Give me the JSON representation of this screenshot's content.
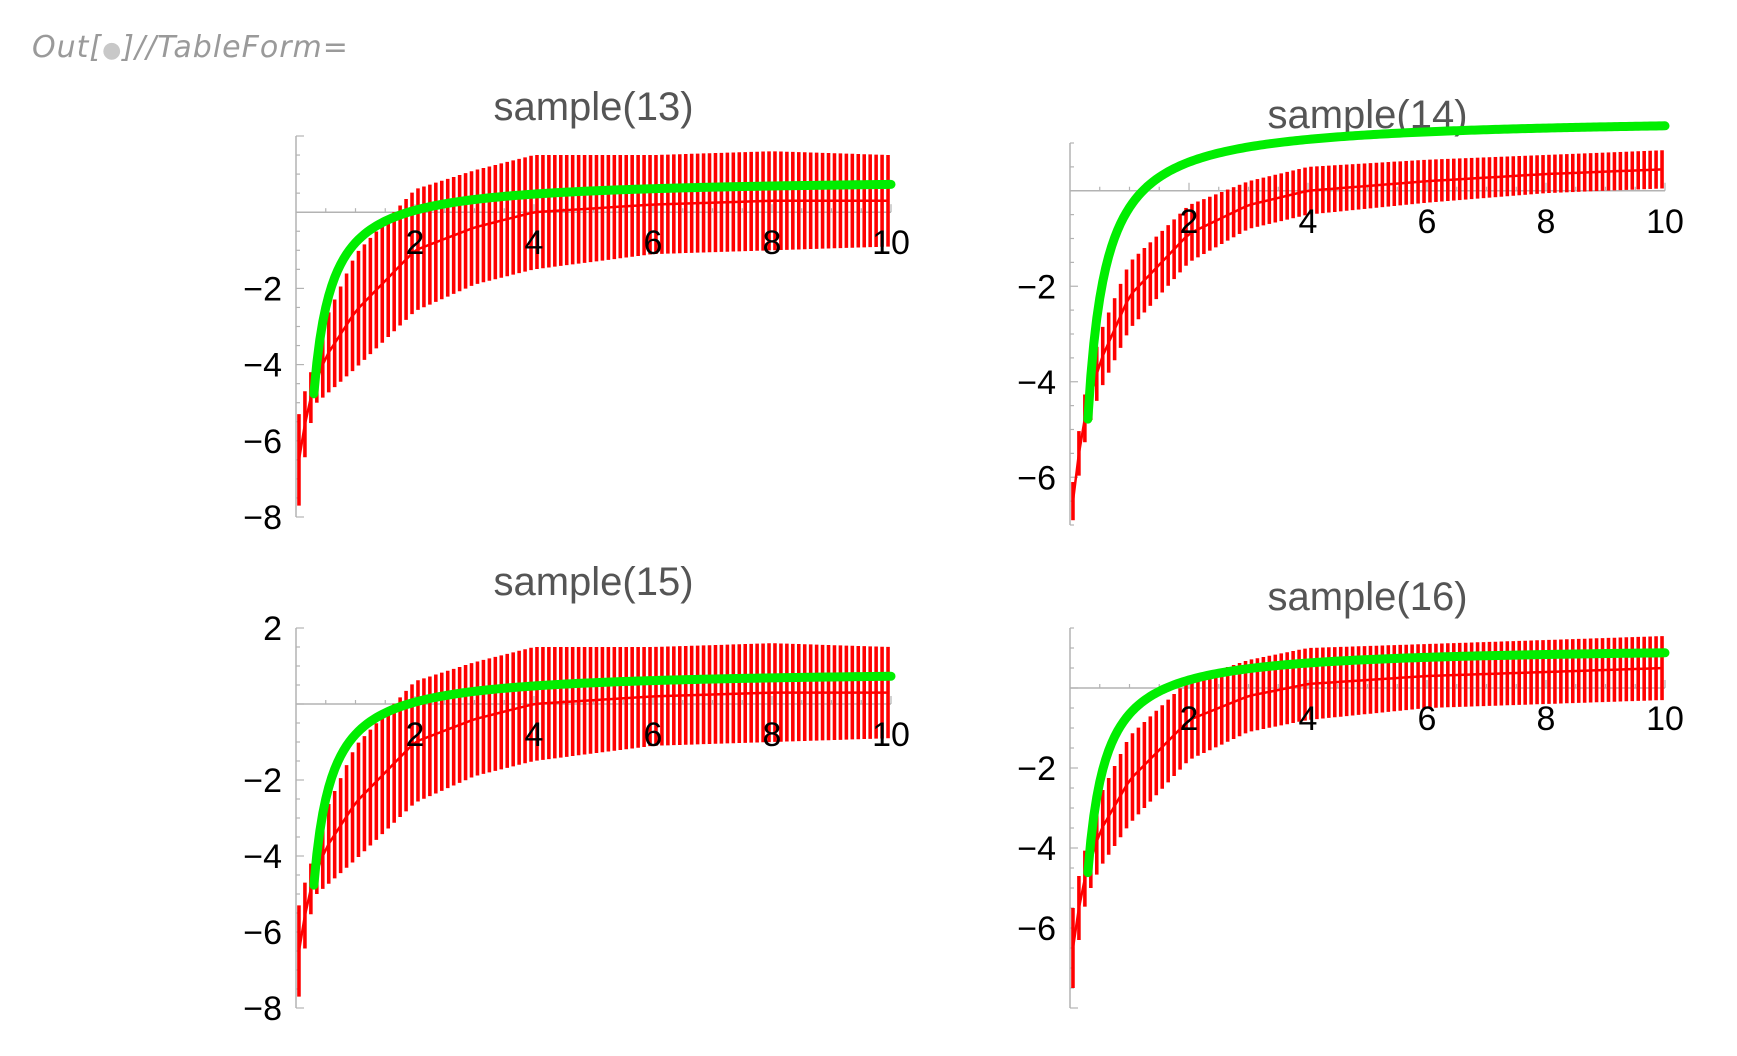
{
  "cell": {
    "prefix": "Out[",
    "suffix": "]//TableForm="
  },
  "colors": {
    "error_bar": "#ff0000",
    "fit_curve": "#00ee00",
    "axis": "#b3b3b3"
  },
  "chart_data": [
    {
      "type": "scatter",
      "title": "sample(13)",
      "xlabel": "",
      "ylabel": "",
      "xlim": [
        0,
        10
      ],
      "ylim": [
        -8,
        2
      ],
      "x_ticks": [
        2,
        4,
        6,
        8,
        10
      ],
      "y_ticks": [
        -2,
        -4,
        -6,
        -8
      ],
      "series": [
        {
          "kind": "errorbars",
          "x_start": 0.05,
          "x_end": 10.0,
          "x_step": 0.1,
          "points": [
            [
              0.05,
              -6.5,
              1.2
            ],
            [
              0.2,
              -5.1,
              0.7
            ],
            [
              0.35,
              -4.4,
              0.6
            ],
            [
              0.5,
              -3.8,
              1.0
            ],
            [
              1,
              -2.6,
              1.5
            ],
            [
              2,
              -1.0,
              1.6
            ],
            [
              3,
              -0.4,
              1.5
            ],
            [
              4,
              0.0,
              1.5
            ],
            [
              6,
              0.2,
              1.3
            ],
            [
              8,
              0.3,
              1.3
            ],
            [
              10,
              0.3,
              1.2
            ]
          ]
        },
        {
          "kind": "curve",
          "a": 0.9,
          "b": 1.7,
          "x_start": 0.3,
          "x_end": 10
        }
      ]
    },
    {
      "type": "scatter",
      "title": "sample(14)",
      "xlabel": "",
      "ylabel": "",
      "xlim": [
        0,
        10
      ],
      "ylim": [
        -7,
        1
      ],
      "x_ticks": [
        2,
        4,
        6,
        8,
        10
      ],
      "y_ticks": [
        -2,
        -4,
        -6
      ],
      "series": [
        {
          "kind": "errorbars",
          "x_start": 0.05,
          "x_end": 10.0,
          "x_step": 0.1,
          "points": [
            [
              0.05,
              -6.5,
              0.4
            ],
            [
              0.2,
              -5.0,
              0.5
            ],
            [
              0.35,
              -4.3,
              0.5
            ],
            [
              0.5,
              -3.6,
              0.6
            ],
            [
              1,
              -2.2,
              0.7
            ],
            [
              2,
              -0.9,
              0.6
            ],
            [
              3,
              -0.3,
              0.5
            ],
            [
              4,
              0.0,
              0.5
            ],
            [
              6,
              0.2,
              0.45
            ],
            [
              8,
              0.35,
              0.4
            ],
            [
              10,
              0.45,
              0.4
            ]
          ]
        },
        {
          "kind": "curve",
          "a": 1.55,
          "b": 1.9,
          "x_start": 0.3,
          "x_end": 10
        }
      ]
    },
    {
      "type": "scatter",
      "title": "sample(15)",
      "xlabel": "",
      "ylabel": "",
      "xlim": [
        0,
        10
      ],
      "ylim": [
        -8,
        2
      ],
      "x_ticks": [
        2,
        4,
        6,
        8,
        10
      ],
      "y_ticks": [
        2,
        -2,
        -4,
        -6,
        -8
      ],
      "series": [
        {
          "kind": "errorbars",
          "x_start": 0.05,
          "x_end": 10.0,
          "x_step": 0.1,
          "points": [
            [
              0.05,
              -6.5,
              1.2
            ],
            [
              0.2,
              -5.1,
              0.7
            ],
            [
              0.35,
              -4.4,
              0.6
            ],
            [
              0.5,
              -3.8,
              1.0
            ],
            [
              1,
              -2.6,
              1.5
            ],
            [
              2,
              -1.0,
              1.6
            ],
            [
              3,
              -0.4,
              1.5
            ],
            [
              4,
              0.0,
              1.5
            ],
            [
              6,
              0.2,
              1.3
            ],
            [
              8,
              0.3,
              1.3
            ],
            [
              10,
              0.3,
              1.2
            ]
          ]
        },
        {
          "kind": "curve",
          "a": 0.9,
          "b": 1.7,
          "x_start": 0.3,
          "x_end": 10
        }
      ]
    },
    {
      "type": "scatter",
      "title": "sample(16)",
      "xlabel": "",
      "ylabel": "",
      "xlim": [
        0,
        10
      ],
      "ylim": [
        -8,
        1.5
      ],
      "x_ticks": [
        2,
        4,
        6,
        8,
        10
      ],
      "y_ticks": [
        -2,
        -4,
        -6
      ],
      "series": [
        {
          "kind": "errorbars",
          "x_start": 0.05,
          "x_end": 10.0,
          "x_step": 0.1,
          "points": [
            [
              0.05,
              -6.5,
              1.0
            ],
            [
              0.2,
              -5.0,
              0.7
            ],
            [
              0.35,
              -4.3,
              0.7
            ],
            [
              0.5,
              -3.6,
              0.9
            ],
            [
              1,
              -2.3,
              1.1
            ],
            [
              2,
              -0.8,
              1.0
            ],
            [
              3,
              -0.2,
              0.9
            ],
            [
              4,
              0.1,
              0.9
            ],
            [
              6,
              0.3,
              0.8
            ],
            [
              8,
              0.4,
              0.8
            ],
            [
              10,
              0.5,
              0.8
            ]
          ]
        },
        {
          "kind": "curve",
          "a": 1.05,
          "b": 1.7,
          "x_start": 0.3,
          "x_end": 10
        }
      ]
    }
  ]
}
